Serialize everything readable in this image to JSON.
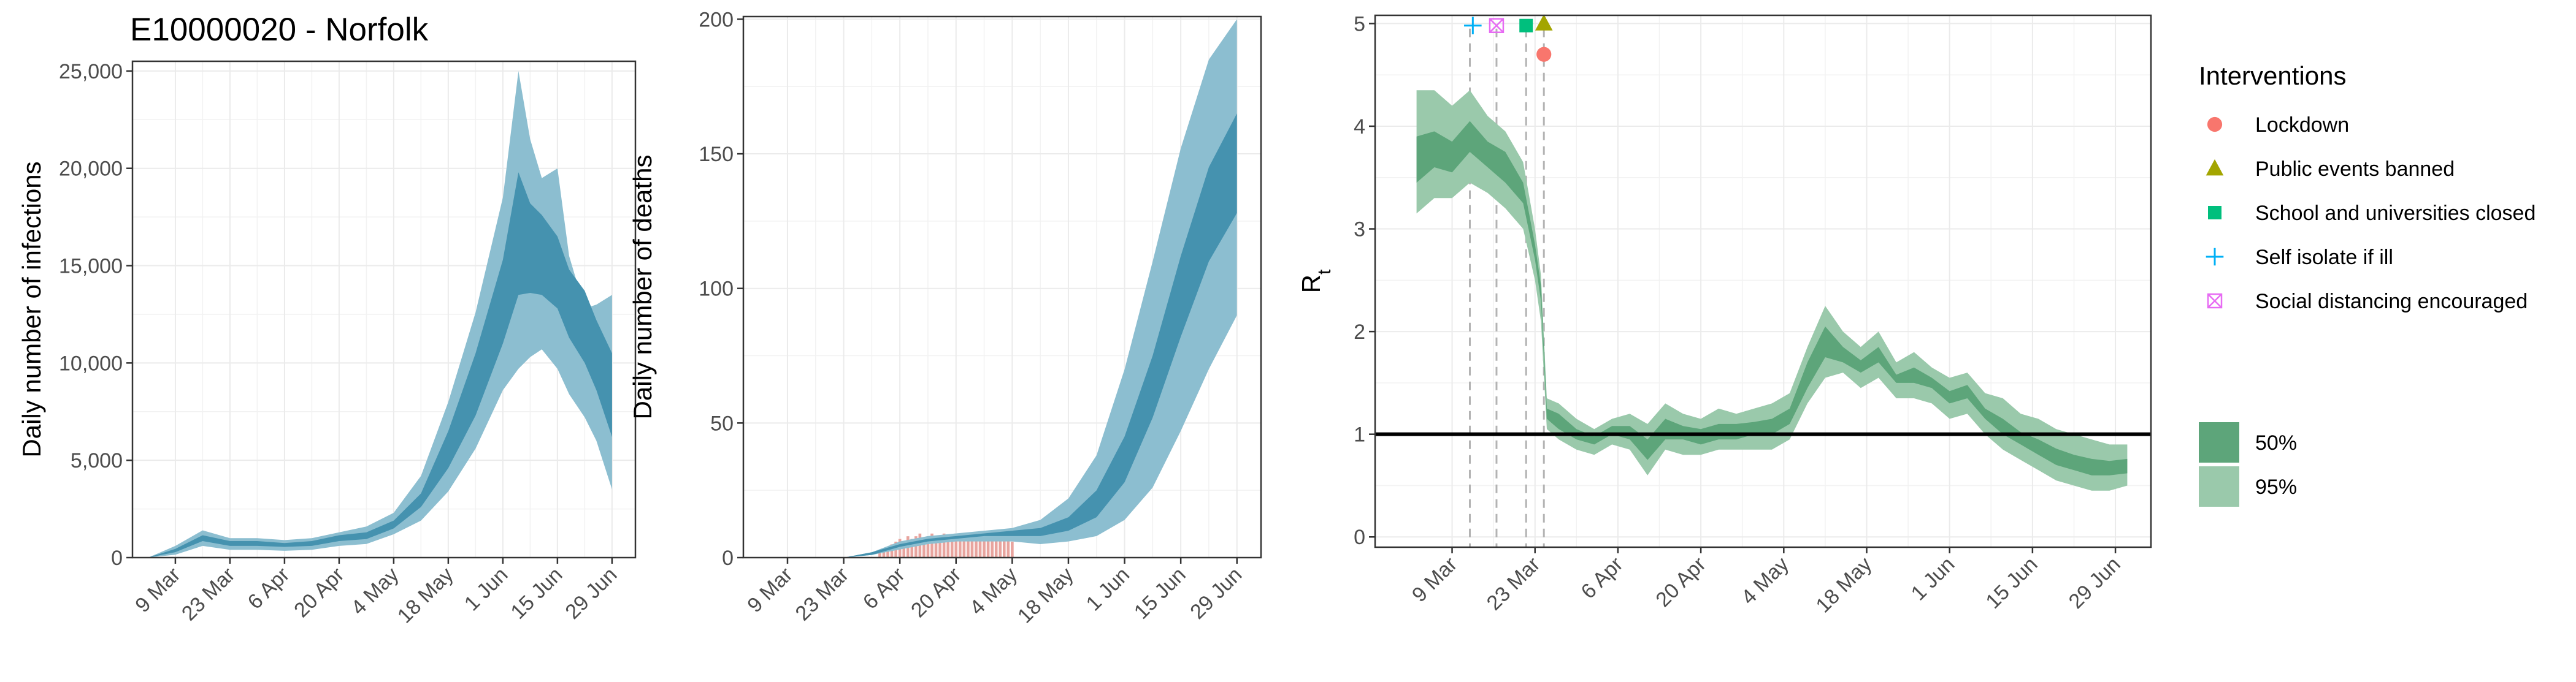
{
  "title": "E10000020 - Norfolk",
  "legend": {
    "title": "Interventions",
    "interventions": [
      {
        "label": "Lockdown",
        "color": "#F8766D",
        "shape": "circle"
      },
      {
        "label": "Public events banned",
        "color": "#A3A500",
        "shape": "triangle"
      },
      {
        "label": "School and universities closed",
        "color": "#00BF7D",
        "shape": "square"
      },
      {
        "label": "Self isolate if ill",
        "color": "#00B0F6",
        "shape": "plus"
      },
      {
        "label": "Social distancing encouraged",
        "color": "#E76BF3",
        "shape": "square-x"
      }
    ],
    "bands": [
      {
        "label": "50%",
        "color": "#5DA57A"
      },
      {
        "label": "95%",
        "color": "#9AC9AB"
      }
    ]
  },
  "chart_data": [
    {
      "type": "area",
      "title": "E10000020 - Norfolk",
      "xlabel": "",
      "ylabel": "Daily number of infections",
      "x_ticks": [
        "9 Mar",
        "23 Mar",
        "6 Apr",
        "20 Apr",
        "4 May",
        "18 May",
        "1 Jun",
        "15 Jun",
        "29 Jun"
      ],
      "x_tick_days": [
        7,
        21,
        35,
        49,
        63,
        77,
        91,
        105,
        119
      ],
      "x_range_days": [
        -4,
        125
      ],
      "y_ticks": [
        "0",
        "5,000",
        "10,000",
        "15,000",
        "20,000",
        "25,000"
      ],
      "y_tick_values": [
        0,
        5000,
        10000,
        15000,
        20000,
        25000
      ],
      "ylim": [
        0,
        25500
      ],
      "colors": {
        "band95": "#8CBED0",
        "band50": "#4592AF"
      },
      "series": [
        {
          "name": "95%",
          "day": [
            0,
            7,
            14,
            21,
            28,
            35,
            42,
            49,
            56,
            63,
            70,
            77,
            84,
            91,
            95,
            98,
            101,
            105,
            108,
            112,
            115,
            119
          ],
          "low": [
            0,
            150,
            600,
            400,
            400,
            350,
            400,
            600,
            700,
            1200,
            1900,
            3400,
            5600,
            8600,
            9700,
            10300,
            10700,
            9700,
            8400,
            7200,
            6000,
            3500
          ],
          "high": [
            0,
            600,
            1400,
            1000,
            1000,
            900,
            1000,
            1300,
            1600,
            2300,
            4200,
            8000,
            12600,
            18500,
            25000,
            21500,
            19500,
            20000,
            15500,
            12800,
            13000,
            13500
          ]
        },
        {
          "name": "50%",
          "day": [
            0,
            7,
            14,
            21,
            28,
            35,
            42,
            49,
            56,
            63,
            70,
            77,
            84,
            91,
            95,
            98,
            101,
            105,
            108,
            112,
            115,
            119
          ],
          "low": [
            0,
            280,
            850,
            600,
            600,
            550,
            600,
            850,
            950,
            1500,
            2600,
            4600,
            7300,
            11000,
            13500,
            13600,
            13500,
            12800,
            11300,
            10000,
            8600,
            6200
          ],
          "high": [
            0,
            450,
            1150,
            850,
            850,
            750,
            850,
            1150,
            1300,
            1900,
            3300,
            6500,
            10500,
            15300,
            19800,
            18200,
            17600,
            16500,
            14800,
            13700,
            12200,
            10500
          ]
        }
      ]
    },
    {
      "type": "area",
      "title": "",
      "xlabel": "",
      "ylabel": "Daily number of deaths",
      "x_ticks": [
        "9 Mar",
        "23 Mar",
        "6 Apr",
        "20 Apr",
        "4 May",
        "18 May",
        "1 Jun",
        "15 Jun",
        "29 Jun"
      ],
      "x_tick_days": [
        7,
        21,
        35,
        49,
        63,
        77,
        91,
        105,
        119
      ],
      "x_range_days": [
        -4,
        125
      ],
      "y_ticks": [
        "0",
        "50",
        "100",
        "150",
        "200"
      ],
      "y_tick_values": [
        0,
        50,
        100,
        150,
        200
      ],
      "ylim": [
        0,
        201
      ],
      "colors": {
        "band95": "#8CBED0",
        "band50": "#4592AF",
        "observed": "#E8A49E"
      },
      "series": [
        {
          "name": "95%",
          "day": [
            0,
            7,
            14,
            21,
            28,
            35,
            42,
            49,
            56,
            63,
            70,
            77,
            84,
            91,
            98,
            105,
            112,
            119
          ],
          "low": [
            0,
            0,
            0,
            0,
            1,
            3,
            5,
            6,
            6,
            6,
            5,
            6,
            8,
            14,
            26,
            47,
            70,
            90
          ],
          "high": [
            0,
            0,
            0,
            0,
            2,
            6,
            8,
            9,
            10,
            11,
            14,
            22,
            38,
            70,
            110,
            152,
            185,
            200
          ]
        },
        {
          "name": "50%",
          "day": [
            0,
            7,
            14,
            21,
            28,
            35,
            42,
            49,
            56,
            63,
            70,
            77,
            84,
            91,
            98,
            105,
            112,
            119
          ],
          "low": [
            0,
            0,
            0,
            0,
            1,
            4,
            6,
            7,
            8,
            8,
            8,
            10,
            15,
            28,
            52,
            82,
            110,
            128
          ],
          "high": [
            0,
            0,
            0,
            0,
            2,
            5,
            7,
            8,
            9,
            10,
            11,
            15,
            25,
            45,
            75,
            112,
            145,
            165
          ]
        },
        {
          "name": "observed",
          "day": [
            30,
            31,
            32,
            33,
            34,
            35,
            36,
            37,
            38,
            39,
            40,
            41,
            42,
            43,
            44,
            45,
            46,
            47,
            48,
            49,
            50,
            51,
            52,
            53,
            54,
            55,
            56,
            57,
            58,
            59,
            60,
            61,
            62,
            63
          ],
          "values": [
            2,
            3,
            4,
            5,
            6,
            7,
            6,
            8,
            7,
            8,
            9,
            7,
            8,
            9,
            8,
            7,
            9,
            8,
            8,
            9,
            7,
            8,
            8,
            9,
            7,
            8,
            8,
            7,
            8,
            7,
            8,
            7,
            7,
            6
          ]
        }
      ]
    },
    {
      "type": "area",
      "title": "",
      "xlabel": "",
      "ylabel": "R",
      "ylabel_subscript": "t",
      "x_ticks": [
        "9 Mar",
        "23 Mar",
        "6 Apr",
        "20 Apr",
        "4 May",
        "18 May",
        "1 Jun",
        "15 Jun",
        "29 Jun"
      ],
      "x_tick_days": [
        7,
        21,
        35,
        49,
        63,
        77,
        91,
        105,
        119
      ],
      "x_range_days": [
        -6,
        125
      ],
      "y_ticks": [
        "0",
        "1",
        "2",
        "3",
        "4",
        "5"
      ],
      "y_tick_values": [
        0,
        1,
        2,
        3,
        4,
        5
      ],
      "ylim": [
        -0.1,
        5.08
      ],
      "reference_line": 1,
      "intervention_days": [
        10,
        14.5,
        19.5,
        22.5
      ],
      "markers": [
        {
          "name": "Self isolate if ill",
          "day": 10.5,
          "value": 4.98,
          "shape": "plus",
          "color": "#00B0F6"
        },
        {
          "name": "Social distancing encouraged",
          "day": 14.5,
          "value": 4.98,
          "shape": "square-x",
          "color": "#E76BF3"
        },
        {
          "name": "School and universities closed",
          "day": 19.5,
          "value": 4.98,
          "shape": "square",
          "color": "#00BF7D"
        },
        {
          "name": "Public events banned",
          "day": 22.5,
          "value": 5.0,
          "shape": "triangle",
          "color": "#A3A500"
        },
        {
          "name": "Lockdown",
          "day": 22.5,
          "value": 4.7,
          "shape": "circle",
          "color": "#F8766D"
        }
      ],
      "colors": {
        "band95": "#9AC9AB",
        "band50": "#5DA57A"
      },
      "series": [
        {
          "name": "95%",
          "day": [
            1,
            4,
            7,
            10,
            13,
            16,
            19,
            21,
            22,
            23,
            25,
            28,
            31,
            34,
            37,
            40,
            43,
            46,
            49,
            52,
            55,
            58,
            61,
            64,
            67,
            70,
            73,
            76,
            79,
            82,
            85,
            88,
            91,
            94,
            97,
            100,
            103,
            106,
            109,
            112,
            115,
            118,
            121
          ],
          "low": [
            3.15,
            3.3,
            3.3,
            3.45,
            3.35,
            3.2,
            3.0,
            2.5,
            2.1,
            1.05,
            0.95,
            0.85,
            0.8,
            0.9,
            0.85,
            0.6,
            0.85,
            0.8,
            0.8,
            0.85,
            0.85,
            0.85,
            0.85,
            0.95,
            1.3,
            1.55,
            1.6,
            1.45,
            1.55,
            1.35,
            1.35,
            1.3,
            1.15,
            1.2,
            1.0,
            0.85,
            0.75,
            0.65,
            0.55,
            0.5,
            0.45,
            0.45,
            0.5
          ],
          "high": [
            4.35,
            4.35,
            4.2,
            4.35,
            4.1,
            3.95,
            3.65,
            3.0,
            2.55,
            1.35,
            1.3,
            1.15,
            1.05,
            1.15,
            1.2,
            1.1,
            1.3,
            1.2,
            1.15,
            1.25,
            1.2,
            1.25,
            1.3,
            1.4,
            1.85,
            2.25,
            2.0,
            1.85,
            2.0,
            1.7,
            1.8,
            1.65,
            1.55,
            1.6,
            1.4,
            1.35,
            1.2,
            1.15,
            1.05,
            1.0,
            0.95,
            0.9,
            0.9
          ]
        },
        {
          "name": "50%",
          "day": [
            1,
            4,
            7,
            10,
            13,
            16,
            19,
            21,
            22,
            23,
            25,
            28,
            31,
            34,
            37,
            40,
            43,
            46,
            49,
            52,
            55,
            58,
            61,
            64,
            67,
            70,
            73,
            76,
            79,
            82,
            85,
            88,
            91,
            94,
            97,
            100,
            103,
            106,
            109,
            112,
            115,
            118,
            121
          ],
          "low": [
            3.45,
            3.6,
            3.55,
            3.75,
            3.6,
            3.45,
            3.25,
            2.7,
            2.3,
            1.15,
            1.05,
            0.95,
            0.9,
            1.0,
            0.95,
            0.75,
            0.95,
            0.95,
            0.9,
            0.95,
            0.95,
            1.0,
            1.0,
            1.1,
            1.45,
            1.75,
            1.7,
            1.6,
            1.7,
            1.5,
            1.5,
            1.45,
            1.3,
            1.35,
            1.15,
            1.0,
            0.9,
            0.8,
            0.7,
            0.65,
            0.6,
            0.6,
            0.62
          ],
          "high": [
            3.9,
            3.95,
            3.85,
            4.05,
            3.85,
            3.75,
            3.45,
            2.85,
            2.45,
            1.25,
            1.2,
            1.05,
            0.98,
            1.08,
            1.08,
            0.95,
            1.15,
            1.08,
            1.05,
            1.1,
            1.1,
            1.12,
            1.15,
            1.25,
            1.7,
            2.05,
            1.85,
            1.72,
            1.85,
            1.58,
            1.65,
            1.55,
            1.42,
            1.48,
            1.25,
            1.15,
            1.02,
            0.95,
            0.86,
            0.8,
            0.76,
            0.74,
            0.76
          ]
        }
      ]
    }
  ]
}
